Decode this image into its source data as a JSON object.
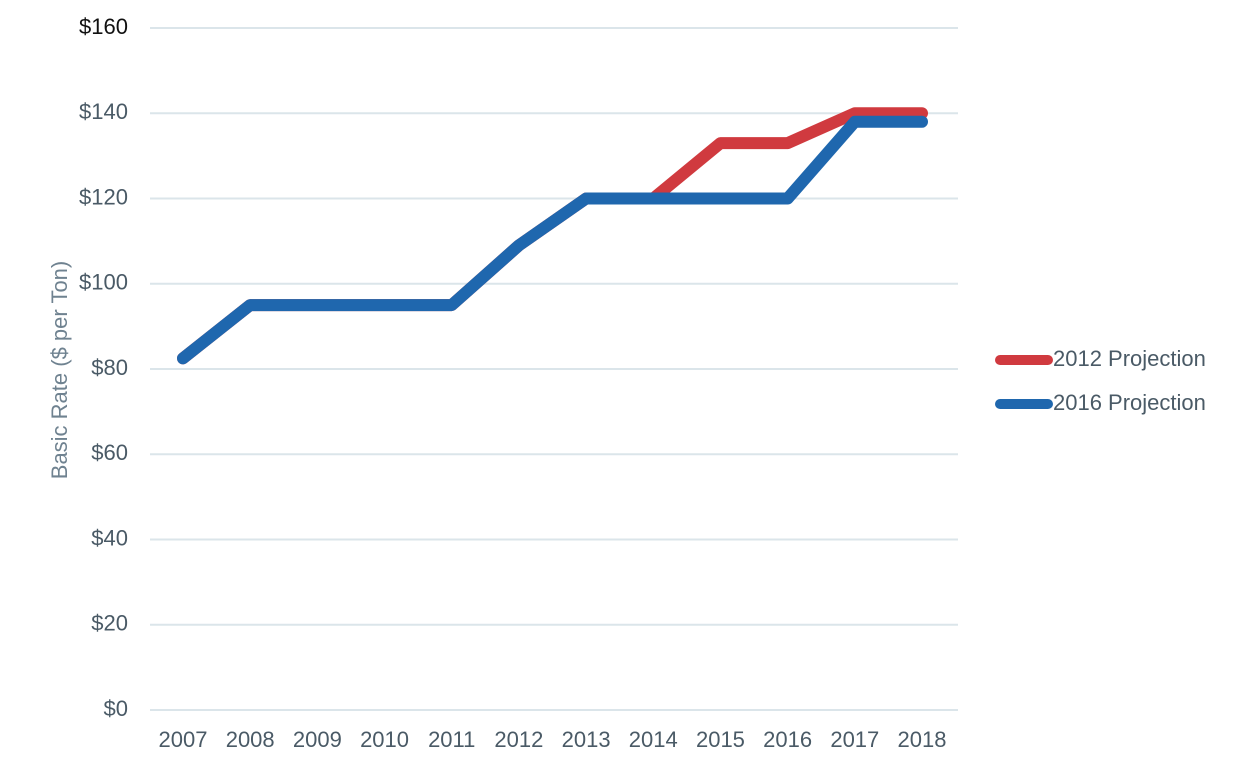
{
  "chart_data": {
    "type": "line",
    "title": "",
    "xlabel": "",
    "ylabel": "Basic Rate ($ per Ton)",
    "categories": [
      "2007",
      "2008",
      "2009",
      "2010",
      "2011",
      "2012",
      "2013",
      "2014",
      "2015",
      "2016",
      "2017",
      "2018"
    ],
    "ylim": [
      0,
      160
    ],
    "yticks": [
      0,
      20,
      40,
      60,
      80,
      100,
      120,
      140,
      160
    ],
    "ytick_labels": [
      "$0",
      "$20",
      "$40",
      "$60",
      "$80",
      "$100",
      "$120",
      "$140",
      "$160"
    ],
    "grid": true,
    "legend_position": "right",
    "series": [
      {
        "name": "2012 Projection",
        "color": "#d03a3f",
        "values": [
          82.5,
          95,
          95,
          95,
          95,
          109,
          120,
          120,
          133,
          133,
          140,
          140
        ]
      },
      {
        "name": "2016 Projection",
        "color": "#1f67ae",
        "values": [
          82.5,
          95,
          95,
          95,
          95,
          109,
          120,
          120,
          120,
          120,
          138,
          138
        ]
      }
    ]
  }
}
